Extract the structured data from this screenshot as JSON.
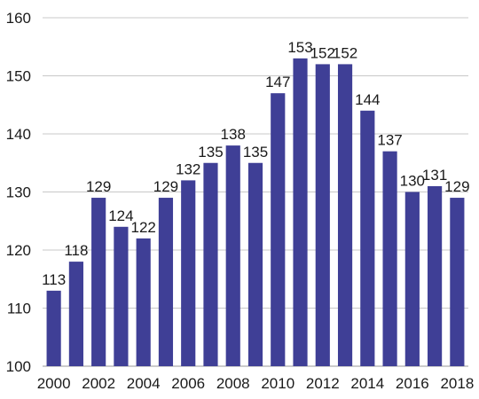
{
  "chart_data": {
    "type": "bar",
    "title": "",
    "xlabel": "",
    "ylabel": "",
    "categories": [
      "2000",
      "2001",
      "2002",
      "2003",
      "2004",
      "2005",
      "2006",
      "2007",
      "2008",
      "2009",
      "2010",
      "2011",
      "2012",
      "2013",
      "2014",
      "2015",
      "2016",
      "2017",
      "2018"
    ],
    "x_tick_labels": [
      "2000",
      "2002",
      "2004",
      "2006",
      "2008",
      "2010",
      "2012",
      "2014",
      "2016",
      "2018"
    ],
    "values": [
      113,
      118,
      129,
      124,
      122,
      129,
      132,
      135,
      138,
      135,
      147,
      153,
      152,
      152,
      144,
      137,
      130,
      131,
      129
    ],
    "value_labels": [
      "113",
      "118",
      "129",
      "124",
      "122",
      "129",
      "132",
      "135",
      "138",
      "135",
      "147",
      "153",
      "152",
      "152",
      "144",
      "137",
      "130",
      "131",
      "129"
    ],
    "ylim": [
      100,
      160
    ],
    "y_ticks": [
      100,
      110,
      120,
      130,
      140,
      150,
      160
    ],
    "grid": "horizontal",
    "legend": "none",
    "bar_color": "#3f3f96",
    "grid_color": "#c8c8c8"
  }
}
